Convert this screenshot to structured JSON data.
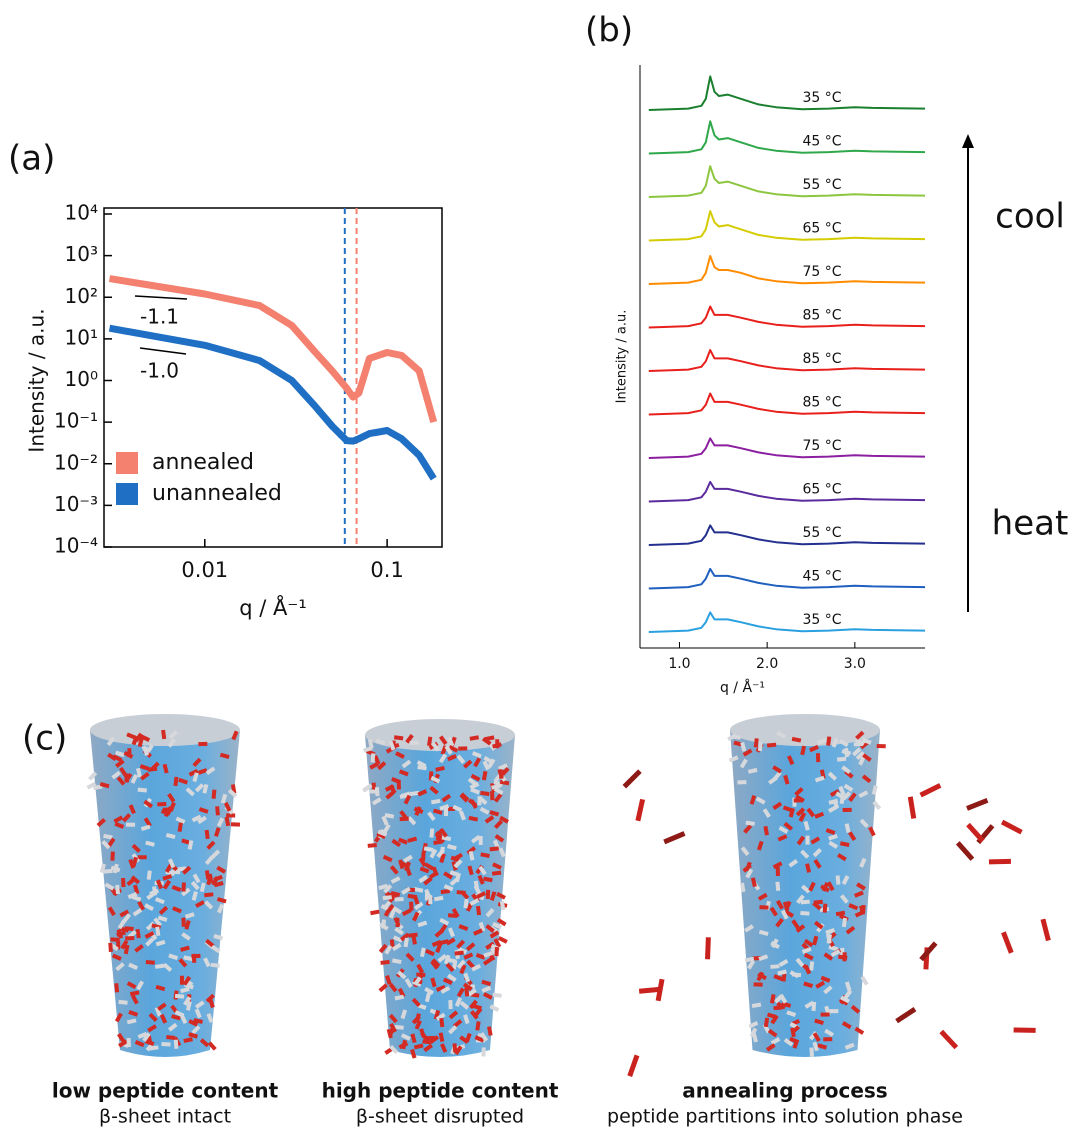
{
  "chart_data": [
    {
      "type": "line",
      "panel_label": "(a)",
      "x_label": "q / Å⁻¹",
      "y_label": "Intensity / a.u.",
      "xscale": "log",
      "yscale": "log",
      "xlim": [
        0.0028,
        0.2
      ],
      "ylim": [
        0.0001,
        10000
      ],
      "xticks": [
        0.01,
        0.1
      ],
      "yticks": [
        {
          "value": 0.0001,
          "label": "10⁻⁴"
        },
        {
          "value": 0.001,
          "label": "10⁻³"
        },
        {
          "value": 0.01,
          "label": "10⁻²"
        },
        {
          "value": 0.1,
          "label": "10⁻¹"
        },
        {
          "value": 1,
          "label": "10⁰"
        },
        {
          "value": 10,
          "label": "10¹"
        },
        {
          "value": 100,
          "label": "10²"
        },
        {
          "value": 1000,
          "label": "10³"
        },
        {
          "value": 10000,
          "label": "10⁴"
        }
      ],
      "x": [
        0.003,
        0.01,
        0.02,
        0.03,
        0.04,
        0.05,
        0.06,
        0.065,
        0.07,
        0.08,
        0.1,
        0.12,
        0.15,
        0.18
      ],
      "series": [
        {
          "name": "annealed",
          "color": "#f4806f",
          "values": [
            280,
            120,
            63,
            21,
            5,
            1.7,
            0.65,
            0.4,
            0.5,
            3.4,
            4.7,
            4,
            1.7,
            0.1
          ]
        },
        {
          "name": "unannealed",
          "color": "#1f6fc4",
          "values": [
            18,
            7,
            3,
            1,
            0.25,
            0.08,
            0.036,
            0.035,
            0.04,
            0.053,
            0.063,
            0.04,
            0.016,
            0.0044
          ]
        }
      ],
      "vlines": [
        {
          "value": 0.0586,
          "color": "#1f6fc4"
        },
        {
          "value": 0.068,
          "color": "#f4806f"
        }
      ],
      "annotations": [
        "-1.1",
        "-1.0"
      ],
      "legend": "lower left"
    },
    {
      "type": "stacked-line",
      "panel_label": "(b)",
      "x_label": "q / Å⁻¹",
      "y_label": "Intensity / a.u.",
      "xlim": [
        0.55,
        3.8
      ],
      "xticks": [
        {
          "value": 1,
          "label": "1.0"
        },
        {
          "value": 2,
          "label": "2.0"
        },
        {
          "value": 3,
          "label": "3.0"
        }
      ],
      "x": [
        0.65,
        0.9,
        1.1,
        1.25,
        1.3,
        1.35,
        1.4,
        1.45,
        1.55,
        1.7,
        1.9,
        2.1,
        2.4,
        2.7,
        3.0,
        3.2,
        3.8
      ],
      "series": [
        {
          "name": "35 °C",
          "color": "#1a7f2e",
          "values": [
            0,
            0.05,
            0.1,
            0.3,
            0.8,
            2.4,
            1.3,
            1.0,
            1.1,
            0.8,
            0.4,
            0.2,
            0.05,
            0.1,
            0.2,
            0.15,
            0.1
          ]
        },
        {
          "name": "45 °C",
          "color": "#2ea84a",
          "values": [
            0,
            0.05,
            0.1,
            0.3,
            0.8,
            2.3,
            1.3,
            1.0,
            1.1,
            0.8,
            0.4,
            0.2,
            0.05,
            0.1,
            0.2,
            0.15,
            0.1
          ]
        },
        {
          "name": "55 °C",
          "color": "#8cc63f",
          "values": [
            0,
            0.05,
            0.1,
            0.3,
            0.8,
            2.2,
            1.3,
            1.0,
            1.1,
            0.8,
            0.4,
            0.2,
            0.05,
            0.1,
            0.2,
            0.15,
            0.1
          ]
        },
        {
          "name": "65 °C",
          "color": "#d4cc00",
          "values": [
            0,
            0.05,
            0.1,
            0.3,
            0.8,
            2.1,
            1.3,
            1.0,
            1.1,
            0.8,
            0.4,
            0.2,
            0.05,
            0.1,
            0.2,
            0.15,
            0.1
          ]
        },
        {
          "name": "75 °C",
          "color": "#ff8c00",
          "values": [
            0,
            0.05,
            0.1,
            0.3,
            0.8,
            2.0,
            1.2,
            1.0,
            1.0,
            0.8,
            0.4,
            0.2,
            0.05,
            0.1,
            0.2,
            0.15,
            0.1
          ]
        },
        {
          "name": "85 °C",
          "color": "#e8201c",
          "values": [
            0,
            0.05,
            0.1,
            0.3,
            0.7,
            1.5,
            0.9,
            0.9,
            0.9,
            0.7,
            0.4,
            0.2,
            0.05,
            0.1,
            0.2,
            0.15,
            0.1
          ]
        },
        {
          "name": "85 °C",
          "color": "#e8201c",
          "values": [
            0,
            0.05,
            0.1,
            0.3,
            0.7,
            1.5,
            0.9,
            0.9,
            0.9,
            0.7,
            0.4,
            0.2,
            0.05,
            0.1,
            0.2,
            0.15,
            0.1
          ]
        },
        {
          "name": "85 °C",
          "color": "#e8201c",
          "values": [
            0,
            0.05,
            0.1,
            0.3,
            0.7,
            1.5,
            0.9,
            0.9,
            0.9,
            0.7,
            0.4,
            0.2,
            0.05,
            0.1,
            0.2,
            0.15,
            0.1
          ]
        },
        {
          "name": "75 °C",
          "color": "#8b1fa0",
          "values": [
            0,
            0.05,
            0.1,
            0.3,
            0.7,
            1.4,
            0.9,
            0.9,
            0.9,
            0.7,
            0.4,
            0.2,
            0.05,
            0.1,
            0.2,
            0.15,
            0.1
          ]
        },
        {
          "name": "65 °C",
          "color": "#5b2b9e",
          "values": [
            0,
            0.05,
            0.1,
            0.3,
            0.7,
            1.4,
            0.9,
            0.9,
            0.9,
            0.7,
            0.4,
            0.2,
            0.05,
            0.1,
            0.2,
            0.15,
            0.1
          ]
        },
        {
          "name": "55 °C",
          "color": "#23308f",
          "values": [
            0,
            0.05,
            0.1,
            0.3,
            0.7,
            1.4,
            0.9,
            0.9,
            0.9,
            0.7,
            0.4,
            0.2,
            0.05,
            0.1,
            0.2,
            0.15,
            0.1
          ]
        },
        {
          "name": "45 °C",
          "color": "#1f5fbf",
          "values": [
            0,
            0.05,
            0.1,
            0.3,
            0.7,
            1.4,
            0.9,
            0.9,
            0.9,
            0.7,
            0.4,
            0.2,
            0.05,
            0.1,
            0.2,
            0.15,
            0.1
          ]
        },
        {
          "name": "35 °C",
          "color": "#2aa0e0",
          "values": [
            0,
            0.05,
            0.1,
            0.3,
            0.7,
            1.4,
            0.9,
            0.9,
            0.9,
            0.7,
            0.4,
            0.2,
            0.05,
            0.1,
            0.2,
            0.15,
            0.1
          ]
        }
      ],
      "annotations": [
        "cool",
        "heat"
      ]
    }
  ],
  "panel_c": {
    "label": "(c)",
    "captions": [
      {
        "title": "low peptide content",
        "subtitle": "β-sheet intact"
      },
      {
        "title": "high peptide content",
        "subtitle": "β-sheet disrupted"
      },
      {
        "title": "annealing process",
        "subtitle": "peptide partitions into solution phase"
      }
    ]
  }
}
